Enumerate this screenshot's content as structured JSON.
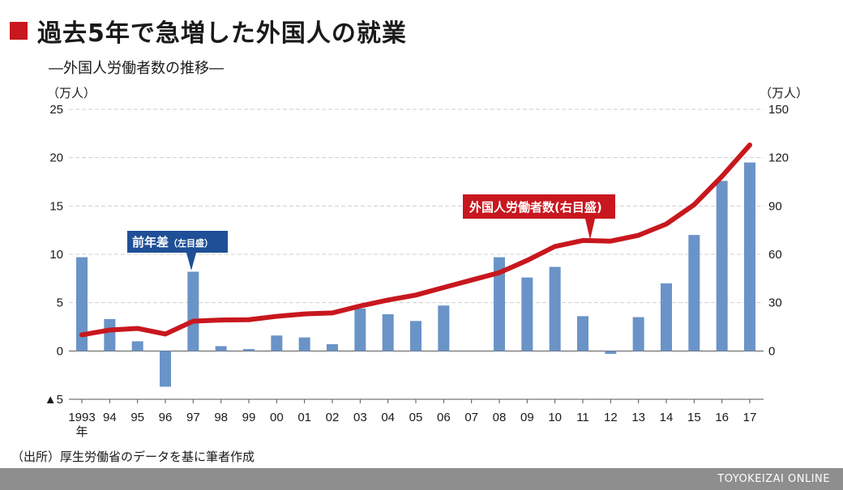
{
  "title": "過去5年で急増した外国人の就業",
  "subtitle": "―外国人労働者数の推移―",
  "unit_left": "（万人）",
  "unit_right": "（万人）",
  "source": "（出所）厚生労働省のデータを基に筆者作成",
  "footer_brand": "TOYOKEIZAI ONLINE",
  "colors": {
    "accent": "#c8171e",
    "bar": "#6a93c7",
    "callout_blue": "#1f4f96",
    "grid": "#cfcfcf",
    "footer": "#8e8e8e"
  },
  "chart_data": {
    "type": "bar+line",
    "categories": [
      "1993",
      "94",
      "95",
      "96",
      "97",
      "98",
      "99",
      "00",
      "01",
      "02",
      "03",
      "04",
      "05",
      "06",
      "07",
      "08",
      "09",
      "10",
      "11",
      "12",
      "13",
      "14",
      "15",
      "16",
      "17"
    ],
    "first_category_suffix": "年",
    "left_axis": {
      "ylim": [
        -5,
        25
      ],
      "ticks": [
        25,
        20,
        15,
        10,
        5,
        0,
        -5
      ],
      "tick_labels": [
        "25",
        "20",
        "15",
        "10",
        "5",
        "0",
        "▲5"
      ]
    },
    "right_axis": {
      "ylim": [
        -30,
        150
      ],
      "ticks": [
        150,
        120,
        90,
        60,
        30,
        0
      ],
      "tick_labels": [
        "150",
        "120",
        "90",
        "60",
        "30",
        "0"
      ]
    },
    "grid": true,
    "series": [
      {
        "name": "前年差",
        "name_suffix": "（左目盛）",
        "type": "bar",
        "axis": "left",
        "values": [
          9.7,
          3.3,
          1.0,
          -3.7,
          8.2,
          0.5,
          0.2,
          1.6,
          1.4,
          0.7,
          4.4,
          3.8,
          3.1,
          4.7,
          null,
          9.7,
          7.6,
          8.7,
          3.6,
          -0.3,
          3.5,
          7.0,
          12.0,
          17.6,
          19.5
        ]
      },
      {
        "name": "外国人労働者数",
        "name_suffix": "(右目盛)",
        "type": "line",
        "axis": "right",
        "values": [
          10.0,
          13.0,
          14.0,
          10.5,
          18.5,
          19.2,
          19.4,
          21.5,
          23.0,
          23.6,
          27.9,
          31.6,
          34.7,
          39.4,
          44.0,
          48.6,
          56.2,
          64.9,
          68.6,
          68.2,
          71.8,
          78.8,
          90.8,
          108.4,
          127.9
        ]
      }
    ]
  }
}
